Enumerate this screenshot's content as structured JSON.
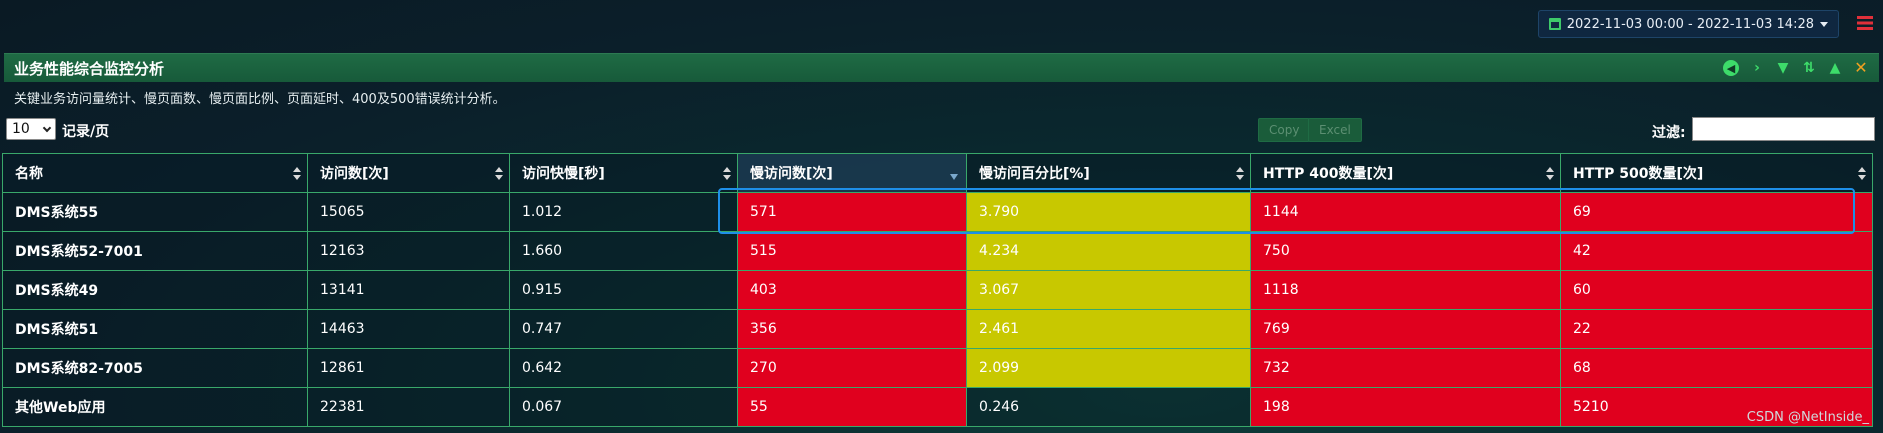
{
  "header": {
    "date_range": "2022-11-03 00:00 - 2022-11-03 14:28"
  },
  "panel": {
    "title": "业务性能综合监控分析",
    "description": "关键业务访问量统计、慢页面数、慢页面比例、页面延时、400及500错误统计分析。",
    "page_size": "10",
    "page_size_label": "记录/页",
    "copy_label": "Copy",
    "excel_label": "Excel",
    "filter_label": "过滤:",
    "filter_value": ""
  },
  "table": {
    "columns": [
      "名称",
      "访问数[次]",
      "访问快慢[秒]",
      "慢访问数[次]",
      "慢访问百分比[%]",
      "HTTP 400数量[次]",
      "HTTP 500数量[次]"
    ],
    "rows": [
      {
        "name": "DMS系统55",
        "visits": "15065",
        "speed": "1.012",
        "slow": "571",
        "slow_pct": "3.790",
        "http400": "1144",
        "http500": "69"
      },
      {
        "name": "DMS系统52-7001",
        "visits": "12163",
        "speed": "1.660",
        "slow": "515",
        "slow_pct": "4.234",
        "http400": "750",
        "http500": "42"
      },
      {
        "name": "DMS系统49",
        "visits": "13141",
        "speed": "0.915",
        "slow": "403",
        "slow_pct": "3.067",
        "http400": "1118",
        "http500": "60"
      },
      {
        "name": "DMS系统51",
        "visits": "14463",
        "speed": "0.747",
        "slow": "356",
        "slow_pct": "2.461",
        "http400": "769",
        "http500": "22"
      },
      {
        "name": "DMS系统82-7005",
        "visits": "12861",
        "speed": "0.642",
        "slow": "270",
        "slow_pct": "2.099",
        "http400": "732",
        "http500": "68"
      },
      {
        "name": "其他Web应用",
        "visits": "22381",
        "speed": "0.067",
        "slow": "55",
        "slow_pct": "0.246",
        "http400": "198",
        "http500": "5210"
      }
    ]
  },
  "colors": {
    "alert_red": "#e0001e",
    "warn_yellow": "#c8c800",
    "header_green": "#1f6b44",
    "highlight_blue": "#1e8fe8"
  },
  "watermark": "CSDN @NetInside_"
}
